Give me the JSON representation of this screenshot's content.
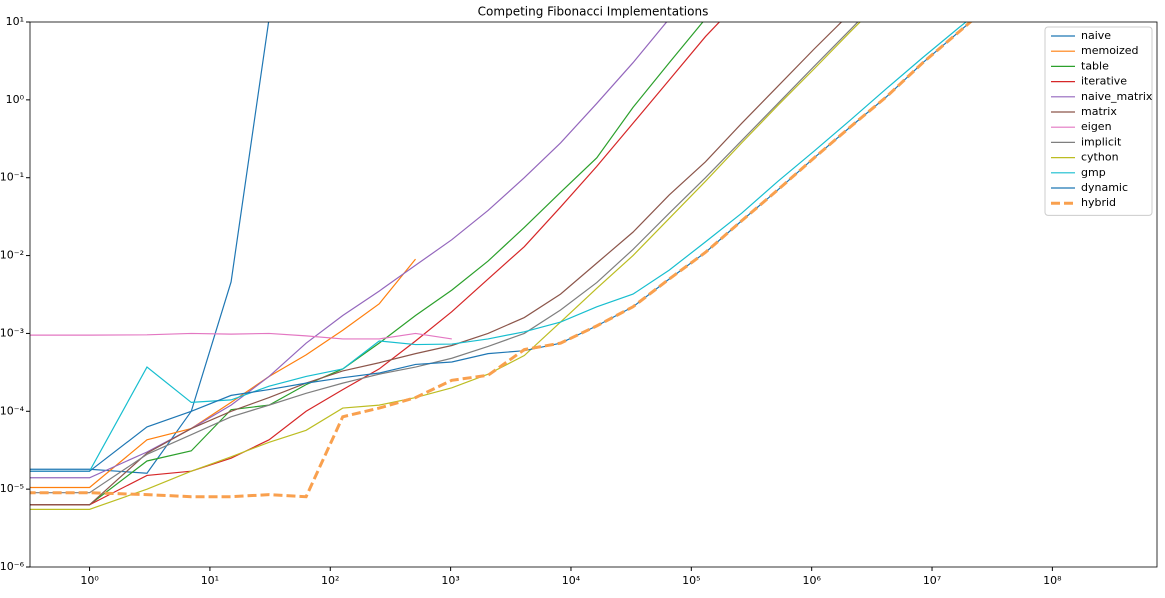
{
  "chart_data": {
    "type": "line",
    "title": "Competing Fibonacci Implementations",
    "xscale": "log",
    "yscale": "log",
    "legend": "upper right",
    "x": [
      0.3,
      1,
      3,
      7,
      15,
      31,
      63,
      127,
      255,
      511,
      1023,
      2047,
      4095,
      8191,
      16383,
      32767,
      65535,
      131071,
      262143,
      524287,
      1048575,
      2097151,
      4194303,
      8388607,
      16777215,
      33554431
    ],
    "xlim": [
      0.32,
      740000000
    ],
    "ylim": [
      1e-06,
      10
    ],
    "xticks": [
      {
        "value": 1,
        "label": "10⁰"
      },
      {
        "value": 10,
        "label": "10¹"
      },
      {
        "value": 100,
        "label": "10²"
      },
      {
        "value": 1000,
        "label": "10³"
      },
      {
        "value": 10000,
        "label": "10⁴"
      },
      {
        "value": 100000,
        "label": "10⁵"
      },
      {
        "value": 1000000,
        "label": "10⁶"
      },
      {
        "value": 10000000,
        "label": "10⁷"
      },
      {
        "value": 100000000,
        "label": "10⁸"
      }
    ],
    "yticks": [
      {
        "value": 1e-06,
        "label": "10⁻⁶"
      },
      {
        "value": 1e-05,
        "label": "10⁻⁵"
      },
      {
        "value": 0.0001,
        "label": "10⁻⁴"
      },
      {
        "value": 0.001,
        "label": "10⁻³"
      },
      {
        "value": 0.01,
        "label": "10⁻²"
      },
      {
        "value": 0.1,
        "label": "10⁻¹"
      },
      {
        "value": 1,
        "label": "10⁰"
      },
      {
        "value": 10,
        "label": "10¹"
      }
    ],
    "series": [
      {
        "name": "naive",
        "color": "#1f77b4",
        "values": [
          1.8e-05,
          1.8e-05,
          1.6e-05,
          0.0001,
          0.0046,
          11,
          null,
          null,
          null,
          null,
          null,
          null,
          null,
          null,
          null,
          null,
          null,
          null,
          null,
          null,
          null,
          null,
          null,
          null,
          null,
          null
        ]
      },
      {
        "name": "memoized",
        "color": "#ff7f0e",
        "values": [
          1.05e-05,
          1.05e-05,
          4.3e-05,
          6e-05,
          0.00013,
          0.00028,
          0.00053,
          0.0011,
          0.0024,
          0.009,
          null,
          null,
          null,
          null,
          null,
          null,
          null,
          null,
          null,
          null,
          null,
          null,
          null,
          null,
          null,
          null
        ]
      },
      {
        "name": "table",
        "color": "#2ca02c",
        "values": [
          6.3e-06,
          6.3e-06,
          2.3e-05,
          3.1e-05,
          0.000105,
          0.00012,
          0.00022,
          0.00035,
          0.00075,
          0.0017,
          0.0036,
          0.0085,
          0.023,
          0.065,
          0.18,
          0.8,
          3,
          11,
          null,
          null,
          null,
          null,
          null,
          null,
          null,
          null
        ]
      },
      {
        "name": "iterative",
        "color": "#d62728",
        "values": [
          6.3e-06,
          6.3e-06,
          1.5e-05,
          1.7e-05,
          2.5e-05,
          4.3e-05,
          0.0001,
          0.00019,
          0.00035,
          0.0008,
          0.0019,
          0.005,
          0.013,
          0.042,
          0.14,
          0.5,
          1.8,
          6.5,
          20,
          null,
          null,
          null,
          null,
          null,
          null,
          null
        ]
      },
      {
        "name": "naive_matrix",
        "color": "#9467bd",
        "values": [
          1.4e-05,
          1.4e-05,
          3e-05,
          6e-05,
          0.00012,
          0.00028,
          0.00075,
          0.0017,
          0.0035,
          0.0075,
          0.016,
          0.038,
          0.1,
          0.28,
          0.9,
          3,
          11,
          null,
          null,
          null,
          null,
          null,
          null,
          null,
          null,
          null
        ]
      },
      {
        "name": "matrix",
        "color": "#8c564b",
        "values": [
          6.3e-06,
          6.3e-06,
          2.9e-05,
          6e-05,
          0.0001,
          0.00015,
          0.00023,
          0.00033,
          0.00042,
          0.00055,
          0.0007,
          0.001,
          0.0016,
          0.0032,
          0.008,
          0.02,
          0.06,
          0.16,
          0.5,
          1.5,
          4.5,
          13,
          null,
          null,
          null,
          null
        ]
      },
      {
        "name": "eigen",
        "color": "#e377c2",
        "values": [
          0.00095,
          0.00095,
          0.00096,
          0.001,
          0.00098,
          0.001,
          0.00093,
          0.00085,
          0.00085,
          0.001,
          0.00085,
          null,
          null,
          null,
          null,
          null,
          null,
          null,
          null,
          null,
          null,
          null,
          null,
          null,
          null,
          null
        ]
      },
      {
        "name": "implicit",
        "color": "#7f7f7f",
        "values": [
          9e-06,
          9e-06,
          2.8e-05,
          5e-05,
          8.5e-05,
          0.00012,
          0.00017,
          0.00023,
          0.0003,
          0.00037,
          0.00048,
          0.00068,
          0.001,
          0.002,
          0.0045,
          0.012,
          0.035,
          0.1,
          0.3,
          0.9,
          2.7,
          8,
          24,
          null,
          null,
          null
        ]
      },
      {
        "name": "cython",
        "color": "#bcbd22",
        "values": [
          5.5e-06,
          5.5e-06,
          1e-05,
          1.7e-05,
          2.6e-05,
          4e-05,
          5.7e-05,
          0.00011,
          0.00012,
          0.00015,
          0.0002,
          0.0003,
          0.00052,
          0.0014,
          0.0038,
          0.01,
          0.03,
          0.09,
          0.28,
          0.85,
          2.5,
          7.5,
          22,
          null,
          null,
          null
        ]
      },
      {
        "name": "gmp",
        "color": "#17becf",
        "values": [
          1.7e-05,
          1.7e-05,
          0.00037,
          0.00013,
          0.00014,
          0.00021,
          0.00028,
          0.00035,
          0.0008,
          0.00072,
          0.00073,
          0.00085,
          0.00105,
          0.0014,
          0.0022,
          0.0032,
          0.0065,
          0.015,
          0.035,
          0.09,
          0.22,
          0.55,
          1.4,
          3.5,
          8.5,
          20
        ]
      },
      {
        "name": "dynamic",
        "color": "#1f77b4",
        "values": [
          1.7e-05,
          1.7e-05,
          6.3e-05,
          0.0001,
          0.00016,
          0.00019,
          0.00023,
          0.00027,
          0.00031,
          0.0004,
          0.00043,
          0.00055,
          0.0006,
          0.00075,
          0.00125,
          0.0022,
          0.005,
          0.011,
          0.028,
          0.07,
          0.18,
          0.45,
          1.1,
          3,
          7.5,
          19
        ]
      },
      {
        "name": "hybrid",
        "color": "#f9a04e",
        "linestyle": "dashed",
        "values": [
          9e-06,
          9e-06,
          8.5e-06,
          8e-06,
          8e-06,
          8.5e-06,
          8e-06,
          8.5e-05,
          0.00011,
          0.00015,
          0.00025,
          0.00029,
          0.00062,
          0.00075,
          0.00125,
          0.0022,
          0.005,
          0.011,
          0.028,
          0.07,
          0.18,
          0.45,
          1.1,
          3,
          7.5,
          19
        ]
      }
    ]
  }
}
